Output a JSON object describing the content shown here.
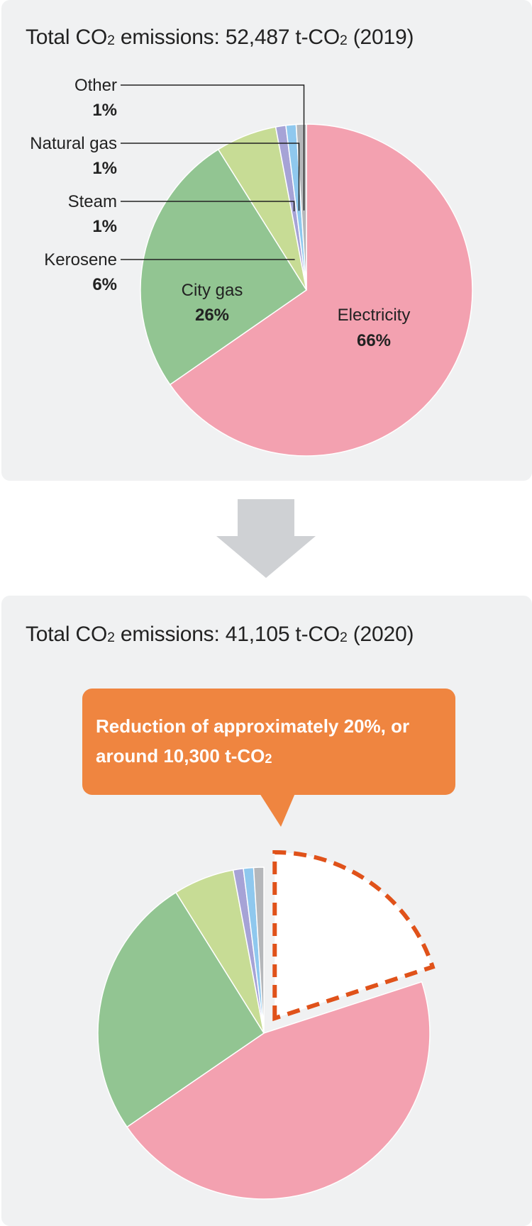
{
  "chart_data": [
    {
      "type": "pie",
      "title": "Total CO₂ emissions: 52,487 t-CO₂ (2019)",
      "title_parts": {
        "prefix": "Total CO",
        "sub": "2",
        "middle": " emissions: 52,487 t-CO",
        "sub2": "2",
        "suffix": " (2019)"
      },
      "total": 52487,
      "unit": "t-CO₂",
      "year": 2019,
      "slices": [
        {
          "label": "Electricity",
          "value": 66,
          "display": "66%",
          "color": "#f3a1b0"
        },
        {
          "label": "City gas",
          "value": 26,
          "display": "26%",
          "color": "#92c592"
        },
        {
          "label": "Kerosene",
          "value": 6,
          "display": "6%",
          "color": "#c7dc95"
        },
        {
          "label": "Steam",
          "value": 1,
          "display": "1%",
          "color": "#a6a3d6"
        },
        {
          "label": "Natural gas",
          "value": 1,
          "display": "1%",
          "color": "#8fc8ee"
        },
        {
          "label": "Other",
          "value": 1,
          "display": "1%",
          "color": "#b5b7ba"
        }
      ]
    },
    {
      "type": "pie",
      "title": "Total CO₂ emissions: 41,105 t-CO₂ (2020)",
      "title_parts": {
        "prefix": "Total CO",
        "sub": "2",
        "middle": " emissions: 41,105 t-CO",
        "sub2": "2",
        "suffix": " (2020)"
      },
      "total": 41105,
      "unit": "t-CO₂",
      "year": 2020,
      "reduction_fraction": 0.2,
      "slices": [
        {
          "label": "Electricity",
          "value": 46,
          "color": "#f3a1b0"
        },
        {
          "label": "City gas",
          "value": 26,
          "color": "#92c592"
        },
        {
          "label": "Kerosene",
          "value": 6,
          "color": "#c7dc95"
        },
        {
          "label": "Steam",
          "value": 1,
          "color": "#a6a3d6"
        },
        {
          "label": "Natural gas",
          "value": 1,
          "color": "#8fc8ee"
        },
        {
          "label": "Other",
          "value": 1,
          "color": "#b5b7ba"
        }
      ]
    }
  ],
  "callout": {
    "line1": "Reduction of approximately 20%, or",
    "line2_prefix": "around 10,300 t-CO",
    "line2_sub": "2",
    "color": "#ef8540"
  },
  "colors": {
    "panel": "#f0f1f2",
    "arrow": "#cfd1d4",
    "dashed_outline": "#e0521a"
  }
}
